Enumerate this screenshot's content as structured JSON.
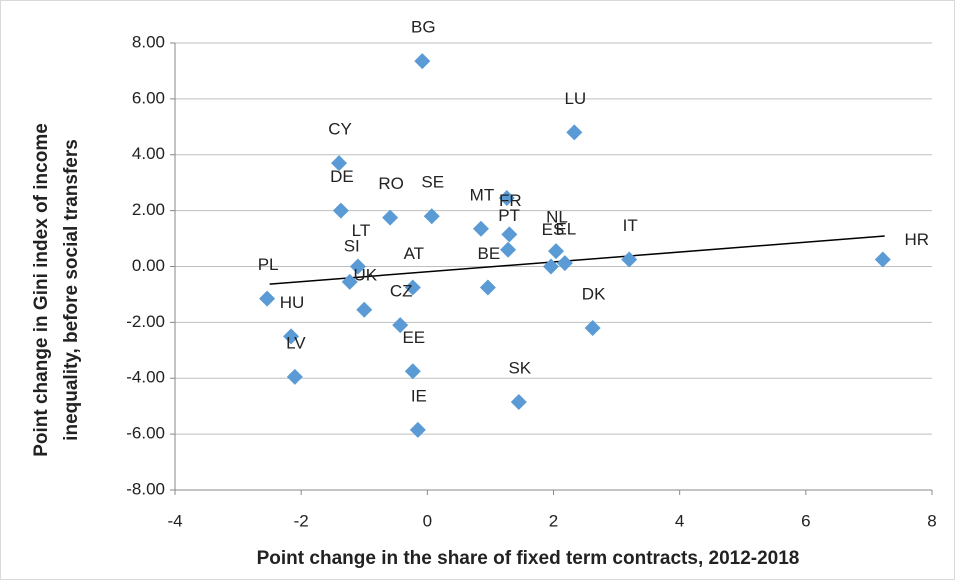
{
  "chart_data": {
    "type": "scatter",
    "x_label": "Point change in the share of fixed term contracts, 2012-2018",
    "y_label": [
      "Point change in Gini index of income",
      "inequality, before social transfers"
    ],
    "labels": [
      "BG",
      "LU",
      "CY",
      "DE",
      "RO",
      "SE",
      "MT",
      null,
      "FR",
      "PT",
      "NL",
      "ES",
      "EL",
      "IT",
      "HR",
      "PL",
      "HU",
      "LV",
      "LT",
      "SI",
      "UK",
      "AT",
      "BE",
      "CZ",
      "EE",
      "IE",
      "DK",
      "SK"
    ],
    "x": [
      -0.08,
      2.33,
      -1.4,
      -1.37,
      -0.59,
      0.07,
      0.85,
      1.26,
      1.3,
      1.28,
      2.04,
      1.96,
      2.18,
      3.2,
      7.22,
      -2.54,
      -2.16,
      -2.1,
      -1.1,
      -1.23,
      -1.0,
      -0.23,
      0.96,
      -0.43,
      -0.23,
      -0.15,
      2.62,
      1.45
    ],
    "values": [
      7.35,
      4.8,
      3.7,
      2.0,
      1.75,
      1.8,
      1.35,
      2.45,
      1.15,
      0.6,
      0.55,
      0.0,
      0.12,
      0.25,
      0.25,
      -1.15,
      -2.5,
      -3.95,
      0.0,
      -0.55,
      -1.55,
      -0.75,
      -0.75,
      -2.1,
      -3.75,
      -5.85,
      -2.2,
      -4.85
    ],
    "color": "#5b9bd5",
    "trendline": {
      "x": [
        -2.5,
        7.25
      ],
      "y": [
        -0.63,
        1.09
      ],
      "color": "#000000"
    },
    "xlim": [
      -4,
      8
    ],
    "xticks": [
      -4,
      -2,
      0,
      2,
      4,
      6,
      8
    ],
    "ylim": [
      -8,
      8
    ],
    "yticks": [
      {
        "value": -8,
        "label": "-8.00"
      },
      {
        "value": -6,
        "label": "-6.00"
      },
      {
        "value": -4,
        "label": "-4.00"
      },
      {
        "value": -2,
        "label": "-2.00"
      },
      {
        "value": 0,
        "label": "0.00"
      },
      {
        "value": 2,
        "label": "2.00"
      },
      {
        "value": 4,
        "label": "4.00"
      },
      {
        "value": 6,
        "label": "6.00"
      },
      {
        "value": 8,
        "label": "8.00"
      }
    ],
    "grid": true
  }
}
